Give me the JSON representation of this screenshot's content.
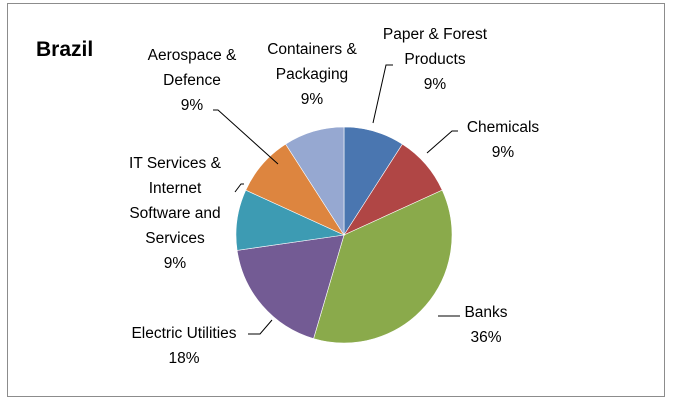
{
  "chart_data": {
    "type": "pie",
    "title": "Brazil",
    "start_angle_deg": 0,
    "direction": "clockwise",
    "slices": [
      {
        "label": "Paper & Forest Products",
        "value": 9,
        "percent_label": "9%",
        "color": "#4a76b0"
      },
      {
        "label": "Chemicals",
        "value": 9,
        "percent_label": "9%",
        "color": "#b04645"
      },
      {
        "label": "Banks",
        "value": 36,
        "percent_label": "36%",
        "color": "#8aaa4b"
      },
      {
        "label": "Electric Utilities",
        "value": 18,
        "percent_label": "18%",
        "color": "#735b94"
      },
      {
        "label": "IT Services & Internet Software and Services",
        "value": 9,
        "percent_label": "9%",
        "color": "#3d9bb3"
      },
      {
        "label": "Aerospace & Defence",
        "value": 9,
        "percent_label": "9%",
        "color": "#dd853f"
      },
      {
        "label": "Containers & Packaging",
        "value": 9,
        "percent_label": "9%",
        "color": "#96a8d1"
      }
    ]
  }
}
